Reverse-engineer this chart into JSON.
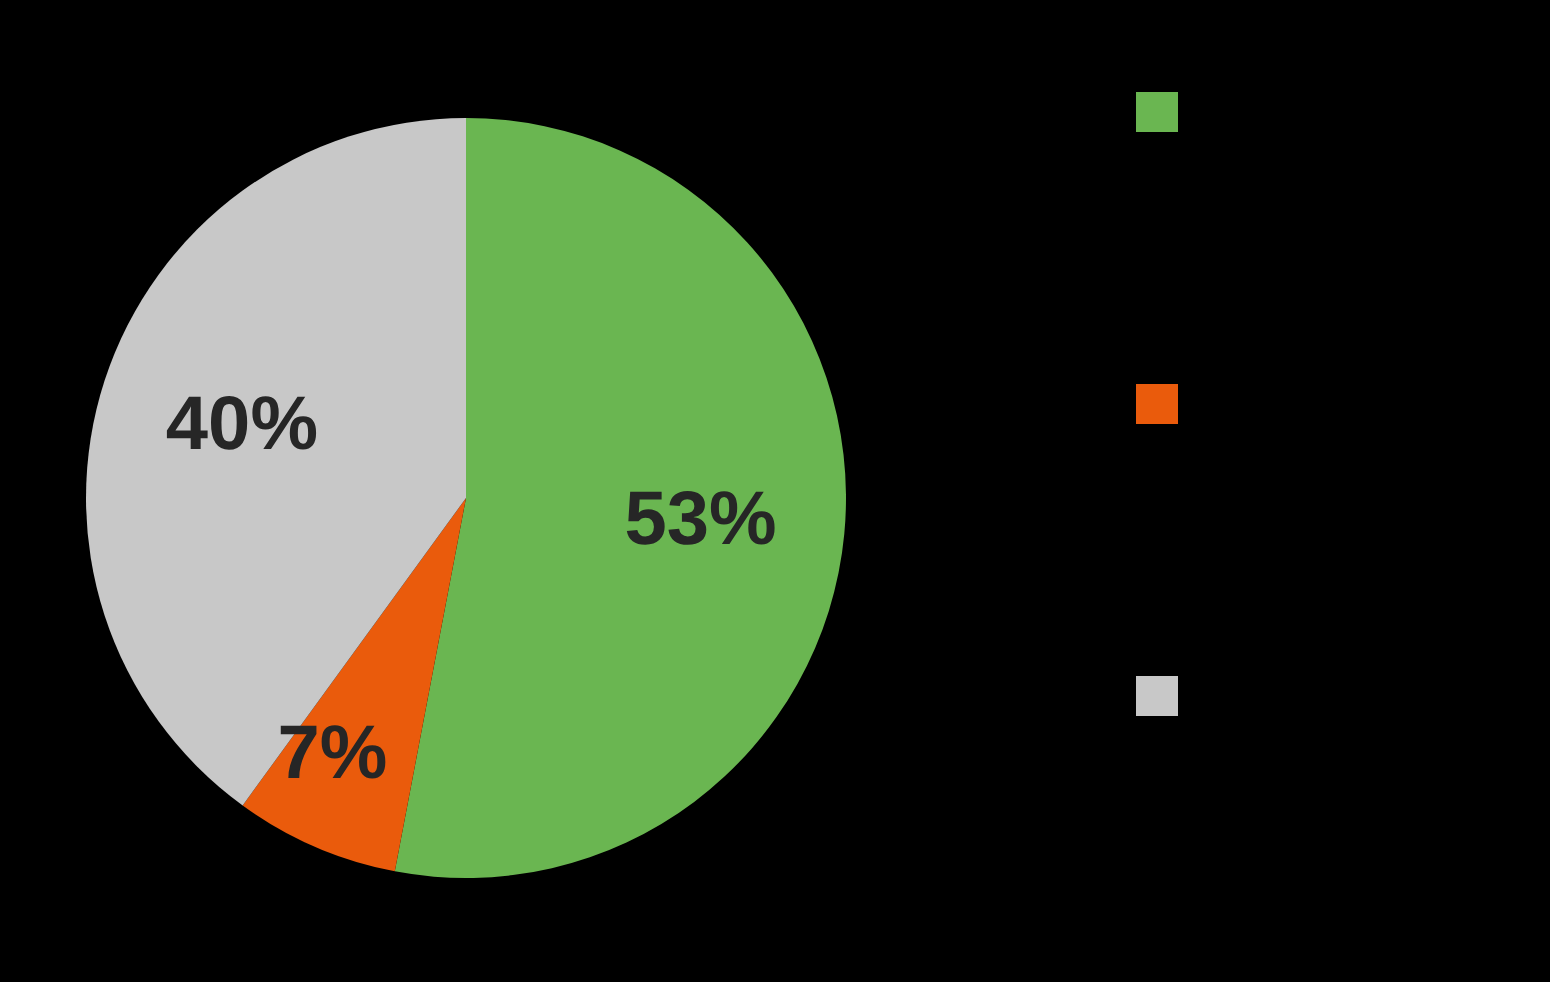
{
  "chart_data": {
    "type": "pie",
    "categories": [
      null,
      null,
      null
    ],
    "values": [
      53,
      7,
      40
    ],
    "colors": [
      "#6ab651",
      "#ea5b0c",
      "#c8c8c8"
    ],
    "value_labels": [
      "53%",
      "7%",
      "40%"
    ]
  }
}
